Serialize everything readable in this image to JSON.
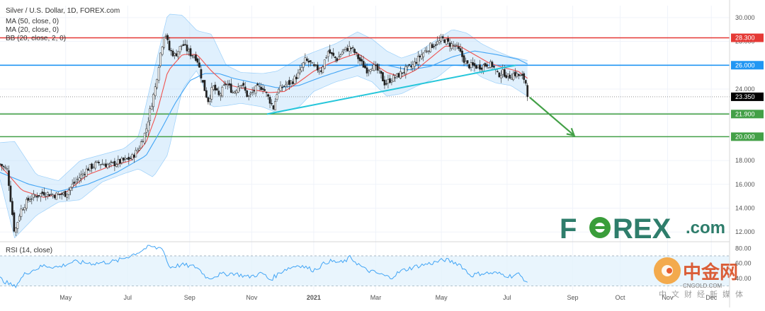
{
  "chart_data": {
    "type": "candlestick",
    "legend": {
      "title": "Silver / U.S. Dollar, 1D, FOREX.com",
      "ma50": "MA (50, close, 0)",
      "ma20": "MA (20, close, 0)",
      "bb": "BB (20, close, 2, 0)",
      "rsi": "RSI (14, close)"
    },
    "y_ticks": [
      "30.000",
      "28.000",
      "26.000",
      "24.000",
      "22.000",
      "20.000",
      "18.000",
      "16.000",
      "14.000",
      "12.000"
    ],
    "y_tick_values": [
      30,
      28,
      26,
      24,
      22,
      20,
      18,
      16,
      14,
      12
    ],
    "ylim": [
      11.3,
      31.0
    ],
    "rsi_ticks": [
      "80.00",
      "60.00",
      "40.00"
    ],
    "rsi_tick_values": [
      80,
      60,
      40
    ],
    "rsi_ylim": [
      25,
      85
    ],
    "rsi_band": [
      30,
      70
    ],
    "x_ticks": [
      "May",
      "Jul",
      "Sep",
      "Nov",
      "2021",
      "Mar",
      "May",
      "Jul",
      "Sep",
      "Oct",
      "Nov",
      "Dec"
    ],
    "x_tick_positions": [
      0.09,
      0.175,
      0.26,
      0.345,
      0.43,
      0.515,
      0.605,
      0.695,
      0.785,
      0.85,
      0.915,
      0.975
    ],
    "levels": [
      {
        "value": 28.3,
        "label": "28.300",
        "color": "#e53935"
      },
      {
        "value": 26.0,
        "label": "26.000",
        "color": "#2196f3"
      },
      {
        "value": 21.9,
        "label": "21.900",
        "color": "#43a047"
      },
      {
        "value": 20.0,
        "label": "20.000",
        "color": "#43a047"
      }
    ],
    "last_price": {
      "value": 23.35,
      "label": "23.350",
      "color": "#000000"
    },
    "close_anchors": [
      [
        0.0,
        17.7
      ],
      [
        0.01,
        17.2
      ],
      [
        0.015,
        14.5
      ],
      [
        0.02,
        11.9
      ],
      [
        0.028,
        13.8
      ],
      [
        0.04,
        14.8
      ],
      [
        0.06,
        15.3
      ],
      [
        0.075,
        15.1
      ],
      [
        0.09,
        15.2
      ],
      [
        0.1,
        16.0
      ],
      [
        0.12,
        17.3
      ],
      [
        0.135,
        17.8
      ],
      [
        0.15,
        17.6
      ],
      [
        0.165,
        17.9
      ],
      [
        0.18,
        18.2
      ],
      [
        0.19,
        19.0
      ],
      [
        0.2,
        20.5
      ],
      [
        0.206,
        22.3
      ],
      [
        0.213,
        24.2
      ],
      [
        0.22,
        27.0
      ],
      [
        0.226,
        28.9
      ],
      [
        0.232,
        27.3
      ],
      [
        0.24,
        26.8
      ],
      [
        0.25,
        27.8
      ],
      [
        0.26,
        27.0
      ],
      [
        0.27,
        26.6
      ],
      [
        0.278,
        24.5
      ],
      [
        0.285,
        23.0
      ],
      [
        0.292,
        24.2
      ],
      [
        0.3,
        23.4
      ],
      [
        0.31,
        24.5
      ],
      [
        0.32,
        23.7
      ],
      [
        0.33,
        24.6
      ],
      [
        0.34,
        23.3
      ],
      [
        0.35,
        24.0
      ],
      [
        0.36,
        24.2
      ],
      [
        0.37,
        23.0
      ],
      [
        0.375,
        22.4
      ],
      [
        0.38,
        23.8
      ],
      [
        0.39,
        24.3
      ],
      [
        0.4,
        24.6
      ],
      [
        0.41,
        25.3
      ],
      [
        0.418,
        26.4
      ],
      [
        0.425,
        26.2
      ],
      [
        0.43,
        25.8
      ],
      [
        0.44,
        25.6
      ],
      [
        0.45,
        27.2
      ],
      [
        0.455,
        26.8
      ],
      [
        0.462,
        26.5
      ],
      [
        0.47,
        27.2
      ],
      [
        0.48,
        27.5
      ],
      [
        0.487,
        27.0
      ],
      [
        0.495,
        26.2
      ],
      [
        0.503,
        25.6
      ],
      [
        0.51,
        26.0
      ],
      [
        0.52,
        25.4
      ],
      [
        0.528,
        24.4
      ],
      [
        0.535,
        24.8
      ],
      [
        0.545,
        25.1
      ],
      [
        0.555,
        25.6
      ],
      [
        0.565,
        25.9
      ],
      [
        0.575,
        26.7
      ],
      [
        0.583,
        27.2
      ],
      [
        0.59,
        27.6
      ],
      [
        0.6,
        27.9
      ],
      [
        0.608,
        28.2
      ],
      [
        0.615,
        27.8
      ],
      [
        0.625,
        27.6
      ],
      [
        0.632,
        26.9
      ],
      [
        0.64,
        26.0
      ],
      [
        0.65,
        25.9
      ],
      [
        0.66,
        25.9
      ],
      [
        0.668,
        26.1
      ],
      [
        0.675,
        26.0
      ],
      [
        0.682,
        25.2
      ],
      [
        0.69,
        25.4
      ],
      [
        0.697,
        25.0
      ],
      [
        0.705,
        25.3
      ],
      [
        0.712,
        25.1
      ],
      [
        0.72,
        24.8
      ],
      [
        0.723,
        23.35
      ]
    ],
    "ma20_anchors": [
      [
        0.0,
        17.6
      ],
      [
        0.03,
        15.5
      ],
      [
        0.06,
        14.9
      ],
      [
        0.09,
        15.3
      ],
      [
        0.12,
        16.8
      ],
      [
        0.15,
        17.5
      ],
      [
        0.18,
        18.0
      ],
      [
        0.2,
        19.5
      ],
      [
        0.215,
        22.0
      ],
      [
        0.23,
        25.5
      ],
      [
        0.25,
        26.9
      ],
      [
        0.27,
        26.9
      ],
      [
        0.29,
        25.5
      ],
      [
        0.31,
        24.4
      ],
      [
        0.33,
        24.1
      ],
      [
        0.35,
        23.9
      ],
      [
        0.37,
        23.7
      ],
      [
        0.39,
        23.8
      ],
      [
        0.41,
        24.6
      ],
      [
        0.43,
        25.5
      ],
      [
        0.45,
        26.1
      ],
      [
        0.47,
        26.6
      ],
      [
        0.49,
        27.0
      ],
      [
        0.51,
        26.2
      ],
      [
        0.53,
        25.4
      ],
      [
        0.55,
        25.0
      ],
      [
        0.57,
        25.6
      ],
      [
        0.59,
        26.6
      ],
      [
        0.61,
        27.6
      ],
      [
        0.63,
        27.6
      ],
      [
        0.65,
        26.9
      ],
      [
        0.67,
        26.2
      ],
      [
        0.69,
        25.8
      ],
      [
        0.71,
        25.5
      ],
      [
        0.723,
        24.9
      ]
    ],
    "ma50_anchors": [
      [
        0.0,
        17.0
      ],
      [
        0.04,
        16.0
      ],
      [
        0.08,
        15.4
      ],
      [
        0.12,
        16.0
      ],
      [
        0.16,
        17.0
      ],
      [
        0.2,
        18.4
      ],
      [
        0.22,
        20.5
      ],
      [
        0.24,
        22.8
      ],
      [
        0.26,
        24.7
      ],
      [
        0.28,
        25.3
      ],
      [
        0.3,
        25.3
      ],
      [
        0.32,
        24.9
      ],
      [
        0.35,
        24.5
      ],
      [
        0.38,
        24.1
      ],
      [
        0.41,
        24.3
      ],
      [
        0.44,
        25.0
      ],
      [
        0.47,
        25.6
      ],
      [
        0.5,
        26.1
      ],
      [
        0.53,
        26.0
      ],
      [
        0.56,
        25.6
      ],
      [
        0.59,
        25.9
      ],
      [
        0.62,
        26.7
      ],
      [
        0.65,
        27.2
      ],
      [
        0.68,
        26.9
      ],
      [
        0.71,
        26.5
      ],
      [
        0.723,
        26.1
      ]
    ],
    "bb_anchors": [
      [
        0.0,
        16.4,
        19.5
      ],
      [
        0.02,
        11.5,
        19.6
      ],
      [
        0.05,
        13.4,
        16.8
      ],
      [
        0.08,
        14.5,
        16.3
      ],
      [
        0.11,
        14.7,
        18.0
      ],
      [
        0.14,
        16.2,
        18.5
      ],
      [
        0.17,
        16.9,
        19.0
      ],
      [
        0.19,
        17.3,
        20.0
      ],
      [
        0.21,
        16.6,
        25.3
      ],
      [
        0.23,
        18.5,
        30.3
      ],
      [
        0.25,
        24.0,
        30.2
      ],
      [
        0.27,
        25.6,
        28.9
      ],
      [
        0.29,
        22.5,
        28.6
      ],
      [
        0.31,
        22.6,
        26.0
      ],
      [
        0.33,
        22.8,
        25.4
      ],
      [
        0.36,
        22.5,
        25.3
      ],
      [
        0.38,
        22.0,
        25.5
      ],
      [
        0.41,
        22.5,
        26.6
      ],
      [
        0.43,
        23.8,
        27.1
      ],
      [
        0.46,
        24.6,
        27.8
      ],
      [
        0.49,
        25.1,
        28.8
      ],
      [
        0.51,
        24.6,
        28.2
      ],
      [
        0.53,
        23.4,
        27.2
      ],
      [
        0.55,
        23.6,
        26.6
      ],
      [
        0.57,
        24.2,
        27.0
      ],
      [
        0.6,
        25.0,
        28.2
      ],
      [
        0.62,
        26.0,
        29.0
      ],
      [
        0.64,
        25.9,
        28.7
      ],
      [
        0.66,
        25.0,
        27.8
      ],
      [
        0.68,
        24.5,
        27.2
      ],
      [
        0.7,
        24.3,
        26.7
      ],
      [
        0.723,
        23.4,
        26.4
      ]
    ],
    "trendline": {
      "points": [
        [
          0.366,
          21.9
        ],
        [
          0.707,
          26.0
        ]
      ],
      "color": "#26c6da"
    },
    "arrow": {
      "from": [
        0.726,
        23.3
      ],
      "to": [
        0.787,
        20.1
      ],
      "color": "#43a047"
    },
    "rsi_anchors": [
      [
        0.0,
        40
      ],
      [
        0.01,
        34
      ],
      [
        0.02,
        29
      ],
      [
        0.035,
        47
      ],
      [
        0.06,
        57
      ],
      [
        0.08,
        55
      ],
      [
        0.1,
        62
      ],
      [
        0.13,
        60
      ],
      [
        0.16,
        63
      ],
      [
        0.19,
        75
      ],
      [
        0.205,
        83
      ],
      [
        0.215,
        80
      ],
      [
        0.222,
        82
      ],
      [
        0.232,
        55
      ],
      [
        0.25,
        58
      ],
      [
        0.27,
        55
      ],
      [
        0.285,
        40
      ],
      [
        0.3,
        45
      ],
      [
        0.32,
        47
      ],
      [
        0.34,
        42
      ],
      [
        0.36,
        47
      ],
      [
        0.37,
        38
      ],
      [
        0.39,
        52
      ],
      [
        0.41,
        58
      ],
      [
        0.43,
        51
      ],
      [
        0.45,
        63
      ],
      [
        0.47,
        61
      ],
      [
        0.48,
        68
      ],
      [
        0.5,
        52
      ],
      [
        0.52,
        46
      ],
      [
        0.535,
        41
      ],
      [
        0.55,
        50
      ],
      [
        0.57,
        56
      ],
      [
        0.59,
        60
      ],
      [
        0.61,
        65
      ],
      [
        0.63,
        59
      ],
      [
        0.645,
        44
      ],
      [
        0.66,
        47
      ],
      [
        0.68,
        47
      ],
      [
        0.7,
        43
      ],
      [
        0.71,
        46
      ],
      [
        0.72,
        38
      ],
      [
        0.723,
        32
      ]
    ]
  },
  "watermarks": {
    "forex_pre": "F",
    "forex_post": "REX",
    "forex_suffix": ".com",
    "cngold_cn": "中金网",
    "cngold_url": "CNGOLD.COM",
    "cngold_slogan": "中文财经新媒体"
  },
  "colors": {
    "up": "#26a69a",
    "down": "#222222",
    "ma20": "#ef5350",
    "ma50": "#42a5f5",
    "bb_fill": "#bbdefb",
    "bb_line": "#64b5f6",
    "rsi": "#42a5f5",
    "rsi_band": "#e3f2fd",
    "forex": "#2e7d6b",
    "forex_o": "#3a9d3a"
  }
}
